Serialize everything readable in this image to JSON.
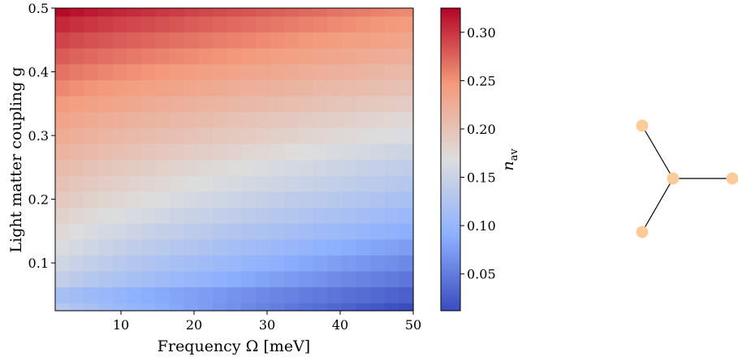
{
  "chart_data": {
    "type": "heatmap",
    "title": "",
    "xlabel": "Frequency Ω [meV]",
    "ylabel": "Light matter coupling g",
    "xlim": [
      1,
      50
    ],
    "ylim": [
      0.025,
      0.5
    ],
    "xticks": [
      "10",
      "20",
      "30",
      "40",
      "50"
    ],
    "xtick_values": [
      10,
      20,
      30,
      40,
      50
    ],
    "yticks": [
      "0.1",
      "0.2",
      "0.3",
      "0.4",
      "0.5"
    ],
    "ytick_values": [
      0.1,
      0.2,
      0.3,
      0.4,
      0.5
    ],
    "colormap": "coolwarm",
    "colorbar": {
      "label": "n_av",
      "label_main": "n",
      "label_sub": "av",
      "range": [
        0.012,
        0.325
      ],
      "ticks": [
        "0.05",
        "0.10",
        "0.15",
        "0.20",
        "0.25",
        "0.30"
      ],
      "tick_values": [
        0.05,
        0.1,
        0.15,
        0.2,
        0.25,
        0.3
      ]
    },
    "grid": false,
    "x": [
      1,
      3,
      5,
      7,
      9,
      11,
      13,
      15,
      17,
      19,
      21,
      23,
      25,
      27,
      29,
      31,
      33,
      35,
      37,
      39,
      41,
      43,
      45,
      47,
      49
    ],
    "y": [
      0.025,
      0.05,
      0.075,
      0.1,
      0.125,
      0.15,
      0.175,
      0.2,
      0.225,
      0.25,
      0.275,
      0.3,
      0.325,
      0.35,
      0.375,
      0.4,
      0.425,
      0.45,
      0.475,
      0.5
    ],
    "value_model": {
      "description_free": true,
      "n_at_omega_min": [
        0.13,
        0.117,
        0.142,
        0.154,
        0.165,
        0.174,
        0.183,
        0.192,
        0.2,
        0.208,
        0.217,
        0.226,
        0.235,
        0.245,
        0.256,
        0.267,
        0.279,
        0.292,
        0.306,
        0.322
      ],
      "n_at_omega_max": [
        0.012,
        0.028,
        0.045,
        0.06,
        0.075,
        0.09,
        0.105,
        0.118,
        0.13,
        0.14,
        0.152,
        0.165,
        0.175,
        0.188,
        0.2,
        0.21,
        0.222,
        0.233,
        0.244,
        0.255
      ]
    }
  },
  "graph_inset": {
    "nodes": [
      {
        "id": "center"
      },
      {
        "id": "top-left"
      },
      {
        "id": "bottom-left"
      },
      {
        "id": "right"
      }
    ],
    "edges": [
      [
        "center",
        "top-left"
      ],
      [
        "center",
        "bottom-left"
      ],
      [
        "center",
        "right"
      ]
    ],
    "node_color": "#fdcb9a",
    "edge_color": "#000000"
  }
}
